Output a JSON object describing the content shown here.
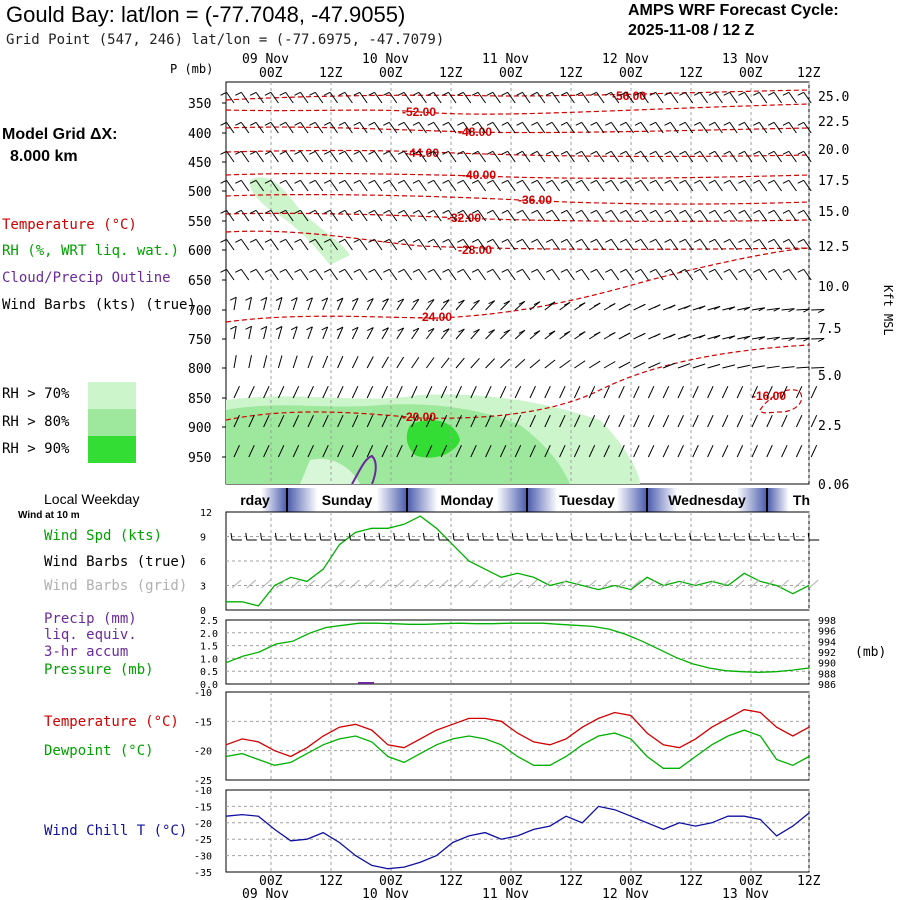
{
  "header": {
    "title": "Gould Bay:  lat/lon = (-77.7048, -47.9055)",
    "subtitle": "Grid Point (547, 246) lat/lon = (-77.6975, -47.7079)",
    "cycle_line1": "AMPS WRF Forecast Cycle:",
    "cycle_line2": "2025-11-08 / 12  Z"
  },
  "left_panel": {
    "p_label": "P (mb)",
    "model_grid_line1": "Model Grid ΔX:",
    "model_grid_line2": "8.000 km",
    "legend_temperature": "Temperature (°C)",
    "legend_rh": "RH (%, WRT liq. wat.)",
    "legend_cloud": "Cloud/Precip Outline",
    "legend_wind": "Wind Barbs (kts) (true)",
    "rh70": "RH > 70%",
    "rh80": "RH > 80%",
    "rh90": "RH > 90%",
    "local_weekday": "Local Weekday",
    "wind_10m": "Wind at 10 m",
    "wind_spd": "Wind Spd (kts)",
    "wind_barbs_true": "Wind Barbs (true)",
    "wind_barbs_grid": "Wind Barbs (grid)",
    "precip1": "Precip (mm)",
    "precip2": "liq. equiv.",
    "precip3": "3-hr accum",
    "pressure": "Pressure (mb)",
    "temperature": "Temperature (°C)",
    "dewpoint": "Dewpoint (°C)",
    "windchill": "Wind Chill T (°C)"
  },
  "colors": {
    "temperature": "#d00000",
    "rh70": "#ccf5cc",
    "rh80": "#9de89d",
    "rh90": "#33dd33",
    "cloud": "#6a2a9a",
    "wind_speed": "#00b000",
    "pressure": "#00b000",
    "dewpoint": "#00b000",
    "windchill": "#1010a0",
    "grid_barbs": "#b0b0b0"
  },
  "time_axis": {
    "top_dates": [
      "09 Nov",
      "10 Nov",
      "11 Nov",
      "12 Nov",
      "13 Nov"
    ],
    "hours": [
      "00Z",
      "12Z",
      "00Z",
      "12Z",
      "00Z",
      "12Z",
      "00Z",
      "12Z",
      "00Z",
      "12Z"
    ],
    "bottom_dates": [
      "09 Nov",
      "10 Nov",
      "11 Nov",
      "12 Nov",
      "13 Nov"
    ],
    "weekdays": [
      "rday",
      "Sunday",
      "Monday",
      "Tuesday",
      "Wednesday",
      "Th"
    ]
  },
  "pressure_axis": {
    "labels": [
      "350",
      "400",
      "450",
      "500",
      "550",
      "600",
      "650",
      "700",
      "750",
      "800",
      "850",
      "900",
      "950"
    ],
    "kft_labels": [
      "25.0",
      "22.5",
      "20.0",
      "17.5",
      "15.0",
      "12.5",
      "10.0",
      "7.5",
      "5.0",
      "2.5",
      "0.06"
    ],
    "kft_title": "Kft MSL"
  },
  "chart_data": [
    {
      "type": "line",
      "title": "",
      "description_labels": [
        "Temperature contours"
      ],
      "contour_labels": [
        "-56.00",
        "-52.00",
        "-48.00",
        "-44.00",
        "-40.00",
        "-36.00",
        "-32.00",
        "-28.00",
        "-24.00",
        "-20.00",
        "-16.00"
      ]
    },
    {
      "type": "line",
      "xlabel": "",
      "ylim": [
        0,
        12
      ],
      "yticks": [
        "12",
        "9",
        "6",
        "3",
        "0"
      ],
      "series": [
        {
          "name": "Wind Spd (kts)",
          "values": [
            1,
            1,
            0.5,
            3,
            4,
            3.5,
            5,
            8,
            9.5,
            10,
            10,
            10.5,
            11.5,
            10,
            8,
            6,
            5,
            4,
            4.5,
            4,
            3,
            3.5,
            3,
            2.5,
            3,
            2.5,
            4,
            3,
            3.5,
            3,
            3.5,
            3,
            4.5,
            3.5,
            3,
            2,
            3
          ]
        }
      ]
    },
    {
      "type": "line",
      "ylim_left": [
        0,
        2.5
      ],
      "yticks_left": [
        "2.5",
        "2.0",
        "1.5",
        "1.0",
        "0.5",
        "0.0"
      ],
      "yticks_right": [
        "998",
        "996",
        "994",
        "992",
        "990",
        "988",
        "986"
      ],
      "right_unit": "(mb)",
      "series": [
        {
          "name": "Pressure (mb)",
          "values": [
            990,
            991.2,
            992,
            993.5,
            994,
            995.5,
            996.6,
            997,
            997.4,
            997.4,
            997.3,
            997.2,
            997.2,
            997.3,
            997.4,
            997.3,
            997.3,
            997.4,
            997.4,
            997.4,
            997.2,
            997.0,
            996.8,
            996.3,
            995.3,
            994,
            992.5,
            991,
            989.8,
            989,
            988.5,
            988.3,
            988.2,
            988.3,
            988.6,
            989.0
          ]
        },
        {
          "name": "Precip (mm)",
          "values": [
            0,
            0,
            0,
            0,
            0,
            0,
            0,
            0,
            0,
            0,
            0,
            0.02,
            0,
            0,
            0,
            0,
            0,
            0,
            0,
            0,
            0,
            0,
            0,
            0,
            0,
            0,
            0,
            0,
            0,
            0,
            0,
            0,
            0,
            0,
            0,
            0
          ]
        }
      ]
    },
    {
      "type": "line",
      "ylim": [
        -25,
        -10
      ],
      "yticks": [
        "-10",
        "-15",
        "-20",
        "-25"
      ],
      "series": [
        {
          "name": "Temperature (°C)",
          "values": [
            -19,
            -18,
            -18.5,
            -20,
            -21,
            -19.5,
            -17.5,
            -16,
            -15.5,
            -16.5,
            -19,
            -19.5,
            -18,
            -16.5,
            -15.5,
            -14.5,
            -14.5,
            -15,
            -17,
            -18.5,
            -19,
            -18,
            -16,
            -14.5,
            -13.5,
            -14,
            -17,
            -19,
            -19.5,
            -18,
            -16,
            -14.5,
            -13,
            -13.5,
            -16,
            -17.5,
            -16
          ]
        },
        {
          "name": "Dewpoint (°C)",
          "values": [
            -21,
            -20.5,
            -21.5,
            -22.5,
            -22,
            -20.5,
            -19,
            -18,
            -17.5,
            -18.5,
            -21,
            -22,
            -20.5,
            -19,
            -18,
            -17.5,
            -18,
            -19,
            -21,
            -22.5,
            -22.5,
            -21,
            -19,
            -17.5,
            -17,
            -18,
            -21,
            -23,
            -23,
            -21,
            -19,
            -17.5,
            -16.5,
            -17.5,
            -21.5,
            -22.5,
            -21
          ]
        }
      ]
    },
    {
      "type": "line",
      "ylim": [
        -35,
        -10
      ],
      "yticks": [
        "-10",
        "-15",
        "-20",
        "-25",
        "-30",
        "-35"
      ],
      "series": [
        {
          "name": "Wind Chill T (°C)",
          "values": [
            -18,
            -17.5,
            -18,
            -22,
            -25.5,
            -25,
            -23,
            -26,
            -30,
            -33,
            -34,
            -33.5,
            -32,
            -30,
            -26,
            -24,
            -23,
            -25,
            -24,
            -22,
            -21,
            -18,
            -20,
            -15,
            -16,
            -18,
            -20,
            -22,
            -20,
            -21,
            -20,
            -18,
            -18,
            -19,
            -24,
            -21,
            -17
          ]
        }
      ]
    }
  ]
}
